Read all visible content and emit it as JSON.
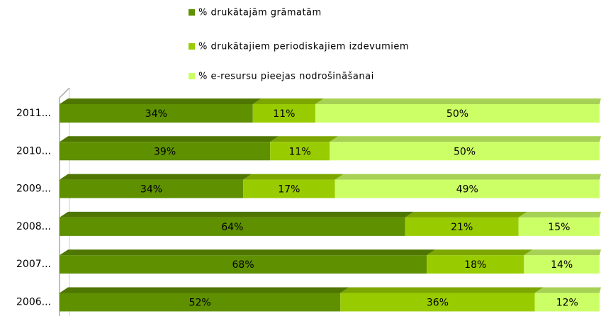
{
  "chart_data": {
    "type": "stacked_bar_100",
    "orientation": "horizontal",
    "categories": [
      "2011...",
      "2010...",
      "2009...",
      "2008...",
      "2007...",
      "2006..."
    ],
    "series": [
      {
        "name": "% drukātajām grāmatām",
        "color": "#5f9000",
        "values": [
          34,
          39,
          34,
          64,
          68,
          52
        ],
        "value_labels": [
          "34%",
          "39%",
          "34%",
          "64%",
          "68%",
          "52%"
        ]
      },
      {
        "name": "% drukātajiem periodiskajiem izdevumiem",
        "color": "#99cc00",
        "values": [
          11,
          11,
          17,
          21,
          18,
          36
        ],
        "value_labels": [
          "11%",
          "11%",
          "17%",
          "21%",
          "18%",
          "36%"
        ]
      },
      {
        "name": "% e-resursu pieejas nodrošināšanai",
        "color": "#ccff66",
        "values": [
          50,
          50,
          49,
          15,
          14,
          12
        ],
        "value_labels": [
          "50%",
          "50%",
          "49%",
          "15%",
          "14%",
          "12%"
        ]
      }
    ],
    "legend": "top"
  }
}
